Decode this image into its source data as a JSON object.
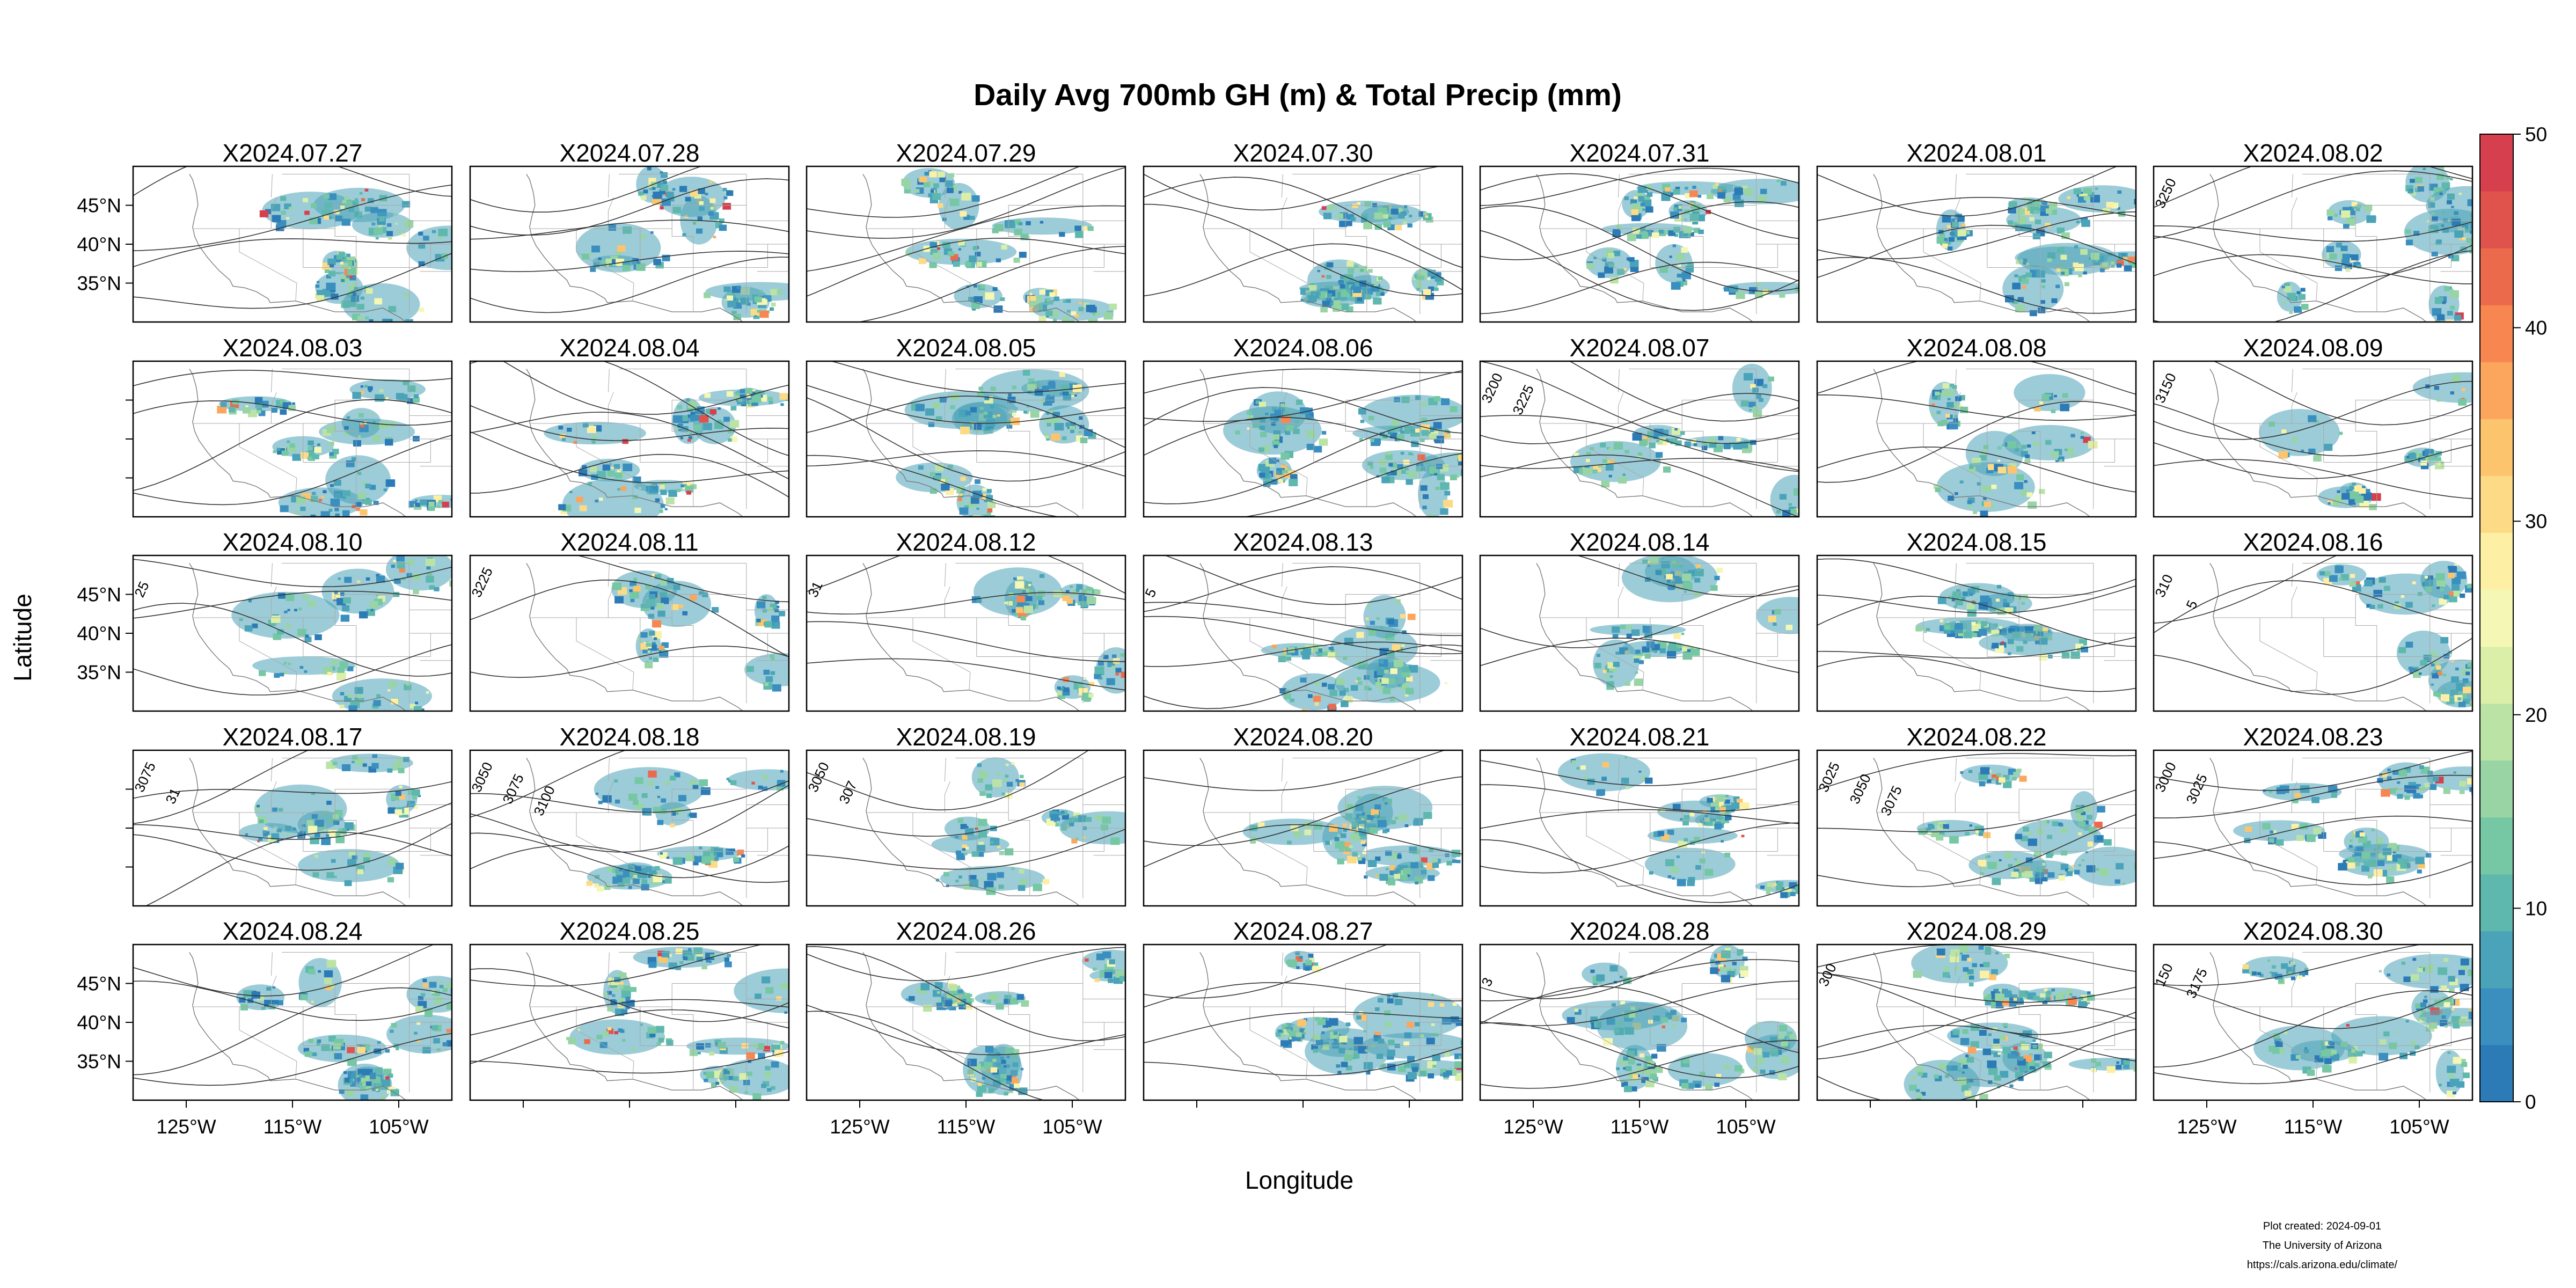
{
  "figure": {
    "title": "Daily Avg 700mb GH (m) & Total Precip (mm)",
    "xlabel": "Longitude",
    "ylabel": "Latitude",
    "credit": [
      "Plot created: 2024-09-01",
      "The University of Arizona",
      "https://cals.arizona.edu/climate/"
    ]
  },
  "chart_data": {
    "type": "heatmap",
    "title": "Daily Avg 700mb GH (m) & Total Precip (mm)",
    "xlabel": "Longitude",
    "ylabel": "Latitude",
    "x_range": [
      -130,
      -100
    ],
    "y_range": [
      30,
      50
    ],
    "x_ticks": [
      -125,
      -115,
      -105
    ],
    "x_tick_labels": [
      "125°W",
      "115°W",
      "105°W"
    ],
    "y_ticks": [
      35,
      40,
      45
    ],
    "y_tick_labels": [
      "35°N",
      "40°N",
      "45°N"
    ],
    "grid": false,
    "legend": "right colorbar",
    "colorbar": {
      "min": 0,
      "max": 50,
      "ticks": [
        0,
        10,
        20,
        30,
        40,
        50
      ],
      "colors": [
        "#2c7bb6",
        "#3a8fbf",
        "#4aa3b8",
        "#5fb8ae",
        "#76c7a3",
        "#98d4a4",
        "#bce3a6",
        "#dcefa9",
        "#f4f8b4",
        "#fdf0a4",
        "#fddb86",
        "#fdc46e",
        "#fca55c",
        "#f88650",
        "#ec6a4c",
        "#e0534c",
        "#d6404e"
      ]
    },
    "panels": [
      {
        "label": "X2024.07.27",
        "contours": []
      },
      {
        "label": "X2024.07.28",
        "contours": []
      },
      {
        "label": "X2024.07.29",
        "contours": []
      },
      {
        "label": "X2024.07.30",
        "contours": []
      },
      {
        "label": "X2024.07.31",
        "contours": []
      },
      {
        "label": "X2024.08.01",
        "contours": []
      },
      {
        "label": "X2024.08.02",
        "contours": [
          "3250"
        ]
      },
      {
        "label": "X2024.08.03",
        "contours": []
      },
      {
        "label": "X2024.08.04",
        "contours": []
      },
      {
        "label": "X2024.08.05",
        "contours": []
      },
      {
        "label": "X2024.08.06",
        "contours": []
      },
      {
        "label": "X2024.08.07",
        "contours": [
          "3200",
          "3225"
        ]
      },
      {
        "label": "X2024.08.08",
        "contours": []
      },
      {
        "label": "X2024.08.09",
        "contours": [
          "3150"
        ]
      },
      {
        "label": "X2024.08.10",
        "contours": [
          "25"
        ]
      },
      {
        "label": "X2024.08.11",
        "contours": [
          "3225"
        ]
      },
      {
        "label": "X2024.08.12",
        "contours": [
          "31"
        ]
      },
      {
        "label": "X2024.08.13",
        "contours": [
          "5"
        ]
      },
      {
        "label": "X2024.08.14",
        "contours": []
      },
      {
        "label": "X2024.08.15",
        "contours": []
      },
      {
        "label": "X2024.08.16",
        "contours": [
          "310",
          "5"
        ]
      },
      {
        "label": "X2024.08.17",
        "contours": [
          "3075",
          "31"
        ]
      },
      {
        "label": "X2024.08.18",
        "contours": [
          "3050",
          "3075",
          "3100"
        ]
      },
      {
        "label": "X2024.08.19",
        "contours": [
          "3050",
          "307"
        ]
      },
      {
        "label": "X2024.08.20",
        "contours": []
      },
      {
        "label": "X2024.08.21",
        "contours": []
      },
      {
        "label": "X2024.08.22",
        "contours": [
          "3025",
          "3050",
          "3075"
        ]
      },
      {
        "label": "X2024.08.23",
        "contours": [
          "3000",
          "3025"
        ]
      },
      {
        "label": "X2024.08.24",
        "contours": []
      },
      {
        "label": "X2024.08.25",
        "contours": []
      },
      {
        "label": "X2024.08.26",
        "contours": []
      },
      {
        "label": "X2024.08.27",
        "contours": []
      },
      {
        "label": "X2024.08.28",
        "contours": [
          "3"
        ]
      },
      {
        "label": "X2024.08.29",
        "contours": [
          "300"
        ]
      },
      {
        "label": "X2024.08.30",
        "contours": [
          "150",
          "3175"
        ]
      }
    ]
  }
}
